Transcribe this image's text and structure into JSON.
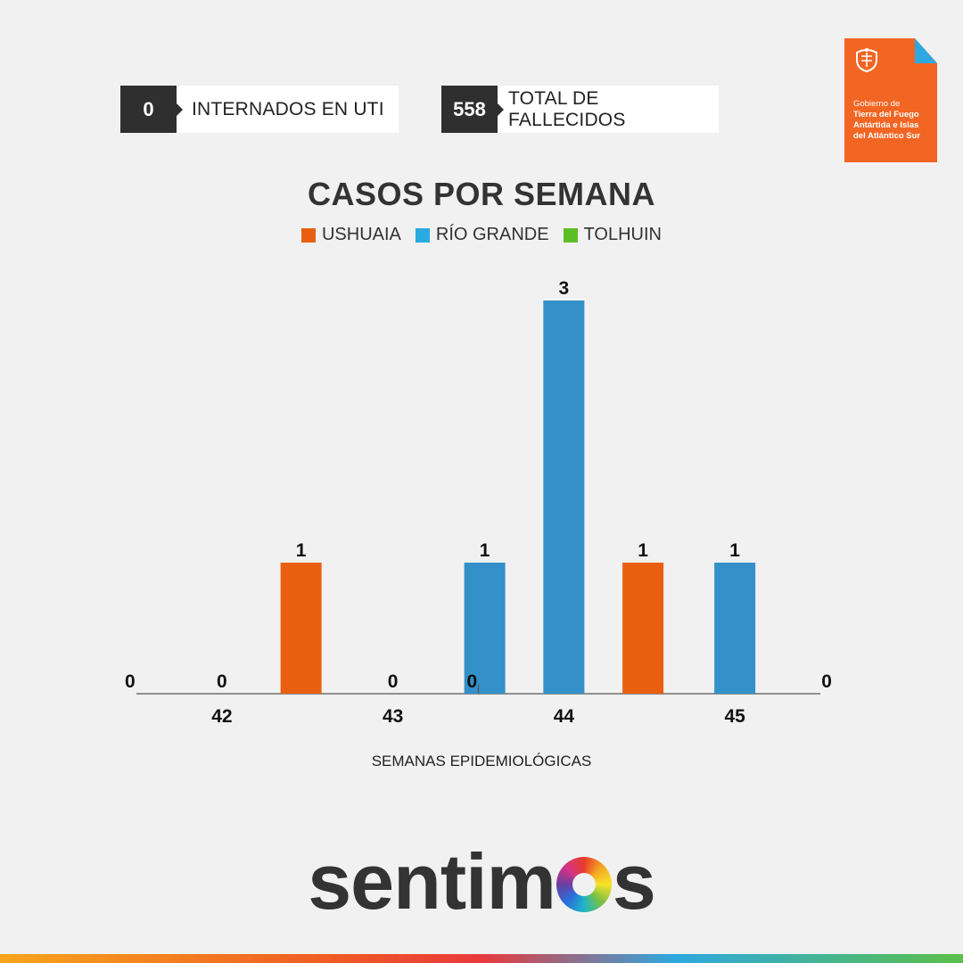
{
  "stats": [
    {
      "value": "0",
      "label": "INTERNADOS EN UTI"
    },
    {
      "value": "558",
      "label": "TOTAL DE FALLECIDOS"
    }
  ],
  "logo": {
    "line1": "Gobierno de",
    "line2": "Tierra del Fuego",
    "line3": "Antártida e Islas",
    "line4": "del Atlántico Sur",
    "brand": "sentimos",
    "brand_before_o": "sentim",
    "brand_after_o": "s"
  },
  "colors": {
    "ushuaia": "#e8600f",
    "rio_grande": "#3390c9",
    "tolhuin": "#5bbf24",
    "highlight_bar": "#c8333f",
    "badge": "#f26522"
  },
  "chart_data": {
    "type": "bar",
    "title": "CASOS POR SEMANA",
    "xlabel": "SEMANAS EPIDEMIOLÓGICAS",
    "ylabel": "",
    "categories": [
      "42",
      "43",
      "44",
      "45"
    ],
    "series": [
      {
        "name": "USHUAIA",
        "values": [
          0,
          1,
          0,
          1
        ]
      },
      {
        "name": "RÍO GRANDE",
        "values": [
          0,
          1,
          3,
          1
        ]
      },
      {
        "name": "TOLHUIN",
        "values": [
          0,
          0,
          0,
          0
        ]
      }
    ],
    "bar_colors": [
      [
        "#e8600f",
        "#3390c9",
        "#5bbf24"
      ],
      [
        "#e8600f",
        "#3390c9",
        "#c8333f"
      ],
      [
        "#e8600f",
        "#3390c9",
        "#5bbf24"
      ],
      [
        "#e8600f",
        "#3390c9",
        "#5bbf24"
      ]
    ],
    "bar_order": [
      [
        "USHUAIA",
        "RÍO GRANDE",
        "TOLHUIN"
      ],
      [
        "USHUAIA",
        "TOLHUIN",
        "RÍO GRANDE"
      ],
      [
        "USHUAIA",
        "RÍO GRANDE",
        "TOLHUIN"
      ],
      [
        "USHUAIA",
        "RÍO GRANDE",
        "TOLHUIN"
      ]
    ],
    "ylim": [
      0,
      3
    ],
    "grid": false,
    "legend_position": "top-center"
  }
}
